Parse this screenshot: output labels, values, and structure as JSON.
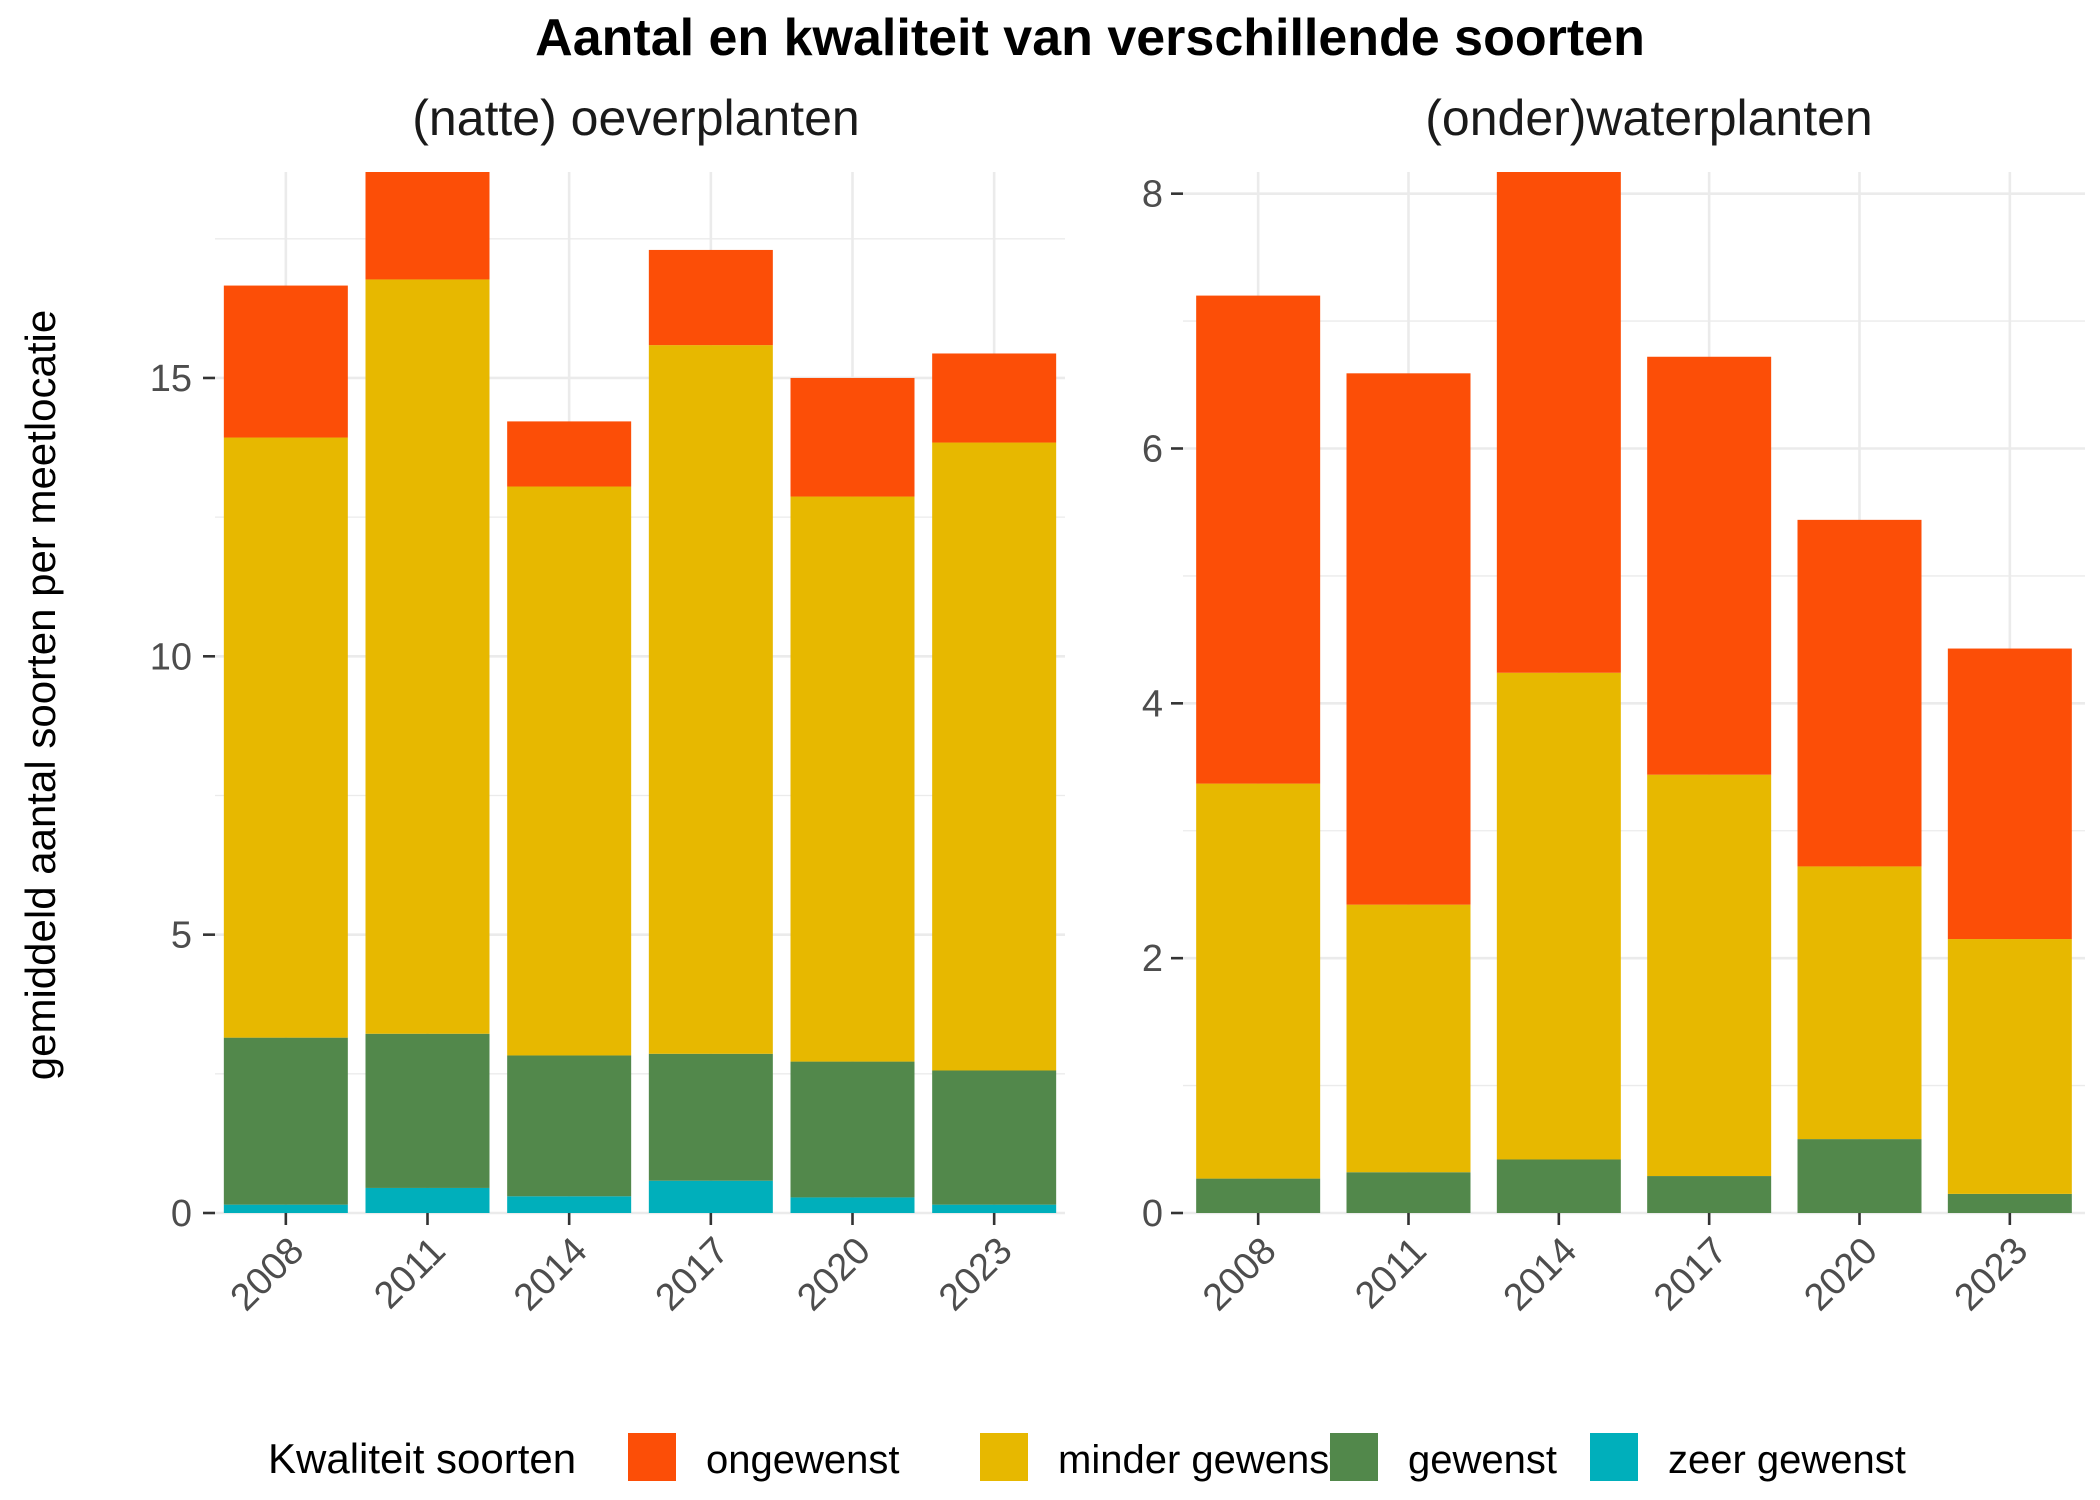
{
  "chart_data": {
    "type": "bar",
    "stacked": true,
    "title": "Aantal en kwaliteit van verschillende soorten",
    "ylabel": "gemiddeld aantal soorten per meetlocatie",
    "legend": {
      "title": "Kwaliteit soorten",
      "placement": "bottom",
      "items": [
        {
          "label": "ongewenst",
          "color": "#FC4E07"
        },
        {
          "label": "minder gewenst",
          "color": "#E7B800"
        },
        {
          "label": "gewenst",
          "color": "#52884B"
        },
        {
          "label": "zeer gewenst",
          "color": "#00AFBB"
        }
      ]
    },
    "panels": [
      {
        "title": "(natte) oeverplanten",
        "categories": [
          "2008",
          "2011",
          "2014",
          "2017",
          "2020",
          "2023"
        ],
        "ylim": [
          0,
          18.7
        ],
        "yticks": [
          0,
          5,
          10,
          15
        ],
        "grid": true,
        "series": [
          {
            "name": "zeer gewenst",
            "color": "#00AFBB",
            "values": [
              0.15,
              0.45,
              0.3,
              0.58,
              0.28,
              0.15
            ]
          },
          {
            "name": "gewenst",
            "color": "#52884B",
            "values": [
              3.0,
              2.77,
              2.53,
              2.28,
              2.44,
              2.41
            ]
          },
          {
            "name": "minder gewenst",
            "color": "#E7B800",
            "values": [
              10.78,
              13.55,
              10.22,
              12.73,
              10.15,
              11.28
            ]
          },
          {
            "name": "ongewenst",
            "color": "#FC4E07",
            "values": [
              2.73,
              1.93,
              1.17,
              1.71,
              2.13,
              1.6
            ]
          }
        ]
      },
      {
        "title": "(onder)waterplanten",
        "categories": [
          "2008",
          "2011",
          "2014",
          "2017",
          "2020",
          "2023"
        ],
        "ylim": [
          0,
          8.17
        ],
        "yticks": [
          0,
          2,
          4,
          6,
          8
        ],
        "grid": true,
        "series": [
          {
            "name": "zeer gewenst",
            "color": "#00AFBB",
            "values": [
              0,
              0,
              0,
              0,
              0,
              0
            ]
          },
          {
            "name": "gewenst",
            "color": "#52884B",
            "values": [
              0.27,
              0.32,
              0.42,
              0.29,
              0.58,
              0.15
            ]
          },
          {
            "name": "minder gewenst",
            "color": "#E7B800",
            "values": [
              3.1,
              2.1,
              3.82,
              3.15,
              2.14,
              2.0
            ]
          },
          {
            "name": "ongewenst",
            "color": "#FC4E07",
            "values": [
              3.83,
              4.17,
              3.93,
              3.28,
              2.72,
              2.28
            ]
          }
        ]
      }
    ]
  }
}
